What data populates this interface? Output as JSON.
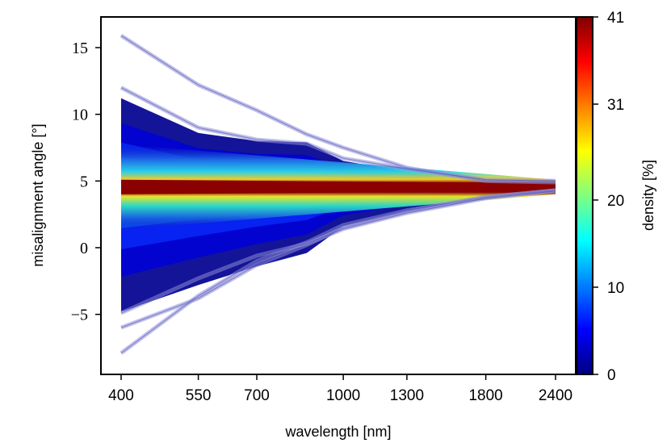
{
  "chart_data": {
    "type": "area",
    "xlabel": "wavelength [nm]",
    "ylabel": "misalignment angle [°]",
    "x_ticks": [
      "400",
      "550",
      "700",
      "1000",
      "1300",
      "1800",
      "2400"
    ],
    "x_tick_values": [
      400,
      550,
      700,
      1000,
      1300,
      1800,
      2400
    ],
    "x_scale": "log",
    "y_ticks": [
      "15",
      "10",
      "5",
      "0",
      "−5"
    ],
    "y_tick_values": [
      15,
      10,
      5,
      0,
      -5
    ],
    "ylim": [
      -9.5,
      17.3
    ],
    "colorbar": {
      "label": "density [%]",
      "ticks": [
        "41",
        "31",
        "20",
        "10",
        "0"
      ],
      "tick_values": [
        41,
        31,
        20,
        10,
        0
      ],
      "range": [
        0,
        41
      ],
      "colormap": "jet"
    },
    "envelope": {
      "x": [
        400,
        550,
        700,
        860,
        1000,
        1300,
        1800,
        2400
      ],
      "upper": [
        11.2,
        8.6,
        8.0,
        7.9,
        6.5,
        5.7,
        5.0,
        4.95
      ],
      "lower": [
        -4.8,
        -2.8,
        -1.4,
        -0.4,
        1.6,
        2.7,
        3.8,
        4.25
      ]
    },
    "core_band": {
      "center": 4.55,
      "x": [
        400,
        2400
      ],
      "half_widths": [
        0.55,
        0.3
      ]
    },
    "outlier_curves": [
      {
        "x": [
          400,
          550,
          700,
          860,
          1000,
          1300,
          1800,
          2400
        ],
        "y": [
          15.9,
          12.2,
          10.3,
          8.5,
          7.5,
          6.0,
          5.0,
          4.9
        ]
      },
      {
        "x": [
          400,
          550,
          700,
          860,
          1000,
          1300,
          1800,
          2400
        ],
        "y": [
          12.0,
          9.0,
          8.1,
          7.8,
          6.7,
          5.9,
          5.1,
          5.0
        ]
      },
      {
        "x": [
          400,
          550,
          700,
          860,
          1000,
          1300,
          1800,
          2400
        ],
        "y": [
          -6.0,
          -3.8,
          -1.3,
          0.2,
          1.5,
          2.7,
          3.8,
          4.3
        ]
      },
      {
        "x": [
          400,
          550,
          700,
          860,
          1000,
          1300,
          1800,
          2400
        ],
        "y": [
          -7.9,
          -3.6,
          -1.0,
          0.4,
          1.7,
          2.8,
          3.8,
          4.3
        ]
      },
      {
        "x": [
          400,
          550,
          700,
          860,
          1000,
          1300,
          1800,
          2400
        ],
        "y": [
          -4.9,
          -2.3,
          -0.6,
          0.3,
          1.4,
          2.6,
          3.7,
          4.25
        ]
      }
    ]
  }
}
